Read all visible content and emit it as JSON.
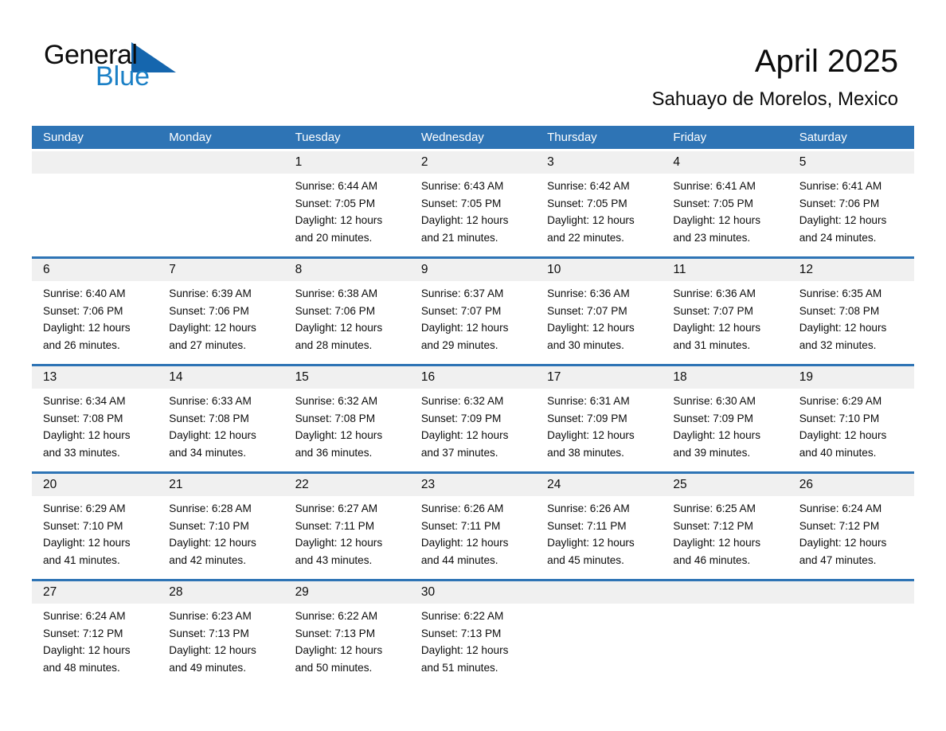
{
  "logo": {
    "part1": "General",
    "part2": "Blue"
  },
  "header": {
    "title": "April 2025",
    "subtitle": "Sahuayo de Morelos, Mexico"
  },
  "weekdays": [
    "Sunday",
    "Monday",
    "Tuesday",
    "Wednesday",
    "Thursday",
    "Friday",
    "Saturday"
  ],
  "weeks": [
    [
      null,
      null,
      {
        "day": "1",
        "sunrise": "Sunrise: 6:44 AM",
        "sunset": "Sunset: 7:05 PM",
        "daylight": "Daylight: 12 hours and 20 minutes."
      },
      {
        "day": "2",
        "sunrise": "Sunrise: 6:43 AM",
        "sunset": "Sunset: 7:05 PM",
        "daylight": "Daylight: 12 hours and 21 minutes."
      },
      {
        "day": "3",
        "sunrise": "Sunrise: 6:42 AM",
        "sunset": "Sunset: 7:05 PM",
        "daylight": "Daylight: 12 hours and 22 minutes."
      },
      {
        "day": "4",
        "sunrise": "Sunrise: 6:41 AM",
        "sunset": "Sunset: 7:05 PM",
        "daylight": "Daylight: 12 hours and 23 minutes."
      },
      {
        "day": "5",
        "sunrise": "Sunrise: 6:41 AM",
        "sunset": "Sunset: 7:06 PM",
        "daylight": "Daylight: 12 hours and 24 minutes."
      }
    ],
    [
      {
        "day": "6",
        "sunrise": "Sunrise: 6:40 AM",
        "sunset": "Sunset: 7:06 PM",
        "daylight": "Daylight: 12 hours and 26 minutes."
      },
      {
        "day": "7",
        "sunrise": "Sunrise: 6:39 AM",
        "sunset": "Sunset: 7:06 PM",
        "daylight": "Daylight: 12 hours and 27 minutes."
      },
      {
        "day": "8",
        "sunrise": "Sunrise: 6:38 AM",
        "sunset": "Sunset: 7:06 PM",
        "daylight": "Daylight: 12 hours and 28 minutes."
      },
      {
        "day": "9",
        "sunrise": "Sunrise: 6:37 AM",
        "sunset": "Sunset: 7:07 PM",
        "daylight": "Daylight: 12 hours and 29 minutes."
      },
      {
        "day": "10",
        "sunrise": "Sunrise: 6:36 AM",
        "sunset": "Sunset: 7:07 PM",
        "daylight": "Daylight: 12 hours and 30 minutes."
      },
      {
        "day": "11",
        "sunrise": "Sunrise: 6:36 AM",
        "sunset": "Sunset: 7:07 PM",
        "daylight": "Daylight: 12 hours and 31 minutes."
      },
      {
        "day": "12",
        "sunrise": "Sunrise: 6:35 AM",
        "sunset": "Sunset: 7:08 PM",
        "daylight": "Daylight: 12 hours and 32 minutes."
      }
    ],
    [
      {
        "day": "13",
        "sunrise": "Sunrise: 6:34 AM",
        "sunset": "Sunset: 7:08 PM",
        "daylight": "Daylight: 12 hours and 33 minutes."
      },
      {
        "day": "14",
        "sunrise": "Sunrise: 6:33 AM",
        "sunset": "Sunset: 7:08 PM",
        "daylight": "Daylight: 12 hours and 34 minutes."
      },
      {
        "day": "15",
        "sunrise": "Sunrise: 6:32 AM",
        "sunset": "Sunset: 7:08 PM",
        "daylight": "Daylight: 12 hours and 36 minutes."
      },
      {
        "day": "16",
        "sunrise": "Sunrise: 6:32 AM",
        "sunset": "Sunset: 7:09 PM",
        "daylight": "Daylight: 12 hours and 37 minutes."
      },
      {
        "day": "17",
        "sunrise": "Sunrise: 6:31 AM",
        "sunset": "Sunset: 7:09 PM",
        "daylight": "Daylight: 12 hours and 38 minutes."
      },
      {
        "day": "18",
        "sunrise": "Sunrise: 6:30 AM",
        "sunset": "Sunset: 7:09 PM",
        "daylight": "Daylight: 12 hours and 39 minutes."
      },
      {
        "day": "19",
        "sunrise": "Sunrise: 6:29 AM",
        "sunset": "Sunset: 7:10 PM",
        "daylight": "Daylight: 12 hours and 40 minutes."
      }
    ],
    [
      {
        "day": "20",
        "sunrise": "Sunrise: 6:29 AM",
        "sunset": "Sunset: 7:10 PM",
        "daylight": "Daylight: 12 hours and 41 minutes."
      },
      {
        "day": "21",
        "sunrise": "Sunrise: 6:28 AM",
        "sunset": "Sunset: 7:10 PM",
        "daylight": "Daylight: 12 hours and 42 minutes."
      },
      {
        "day": "22",
        "sunrise": "Sunrise: 6:27 AM",
        "sunset": "Sunset: 7:11 PM",
        "daylight": "Daylight: 12 hours and 43 minutes."
      },
      {
        "day": "23",
        "sunrise": "Sunrise: 6:26 AM",
        "sunset": "Sunset: 7:11 PM",
        "daylight": "Daylight: 12 hours and 44 minutes."
      },
      {
        "day": "24",
        "sunrise": "Sunrise: 6:26 AM",
        "sunset": "Sunset: 7:11 PM",
        "daylight": "Daylight: 12 hours and 45 minutes."
      },
      {
        "day": "25",
        "sunrise": "Sunrise: 6:25 AM",
        "sunset": "Sunset: 7:12 PM",
        "daylight": "Daylight: 12 hours and 46 minutes."
      },
      {
        "day": "26",
        "sunrise": "Sunrise: 6:24 AM",
        "sunset": "Sunset: 7:12 PM",
        "daylight": "Daylight: 12 hours and 47 minutes."
      }
    ],
    [
      {
        "day": "27",
        "sunrise": "Sunrise: 6:24 AM",
        "sunset": "Sunset: 7:12 PM",
        "daylight": "Daylight: 12 hours and 48 minutes."
      },
      {
        "day": "28",
        "sunrise": "Sunrise: 6:23 AM",
        "sunset": "Sunset: 7:13 PM",
        "daylight": "Daylight: 12 hours and 49 minutes."
      },
      {
        "day": "29",
        "sunrise": "Sunrise: 6:22 AM",
        "sunset": "Sunset: 7:13 PM",
        "daylight": "Daylight: 12 hours and 50 minutes."
      },
      {
        "day": "30",
        "sunrise": "Sunrise: 6:22 AM",
        "sunset": "Sunset: 7:13 PM",
        "daylight": "Daylight: 12 hours and 51 minutes."
      },
      null,
      null,
      null
    ]
  ],
  "colors": {
    "header_blue": "#2E74B5",
    "row_divider_blue": "#2E74B5",
    "day_band_gray": "#F0F0F0",
    "logo_text_blue": "#1B80C6",
    "logo_triangle_blue": "#1566AE",
    "text": "#0C0C0C"
  }
}
